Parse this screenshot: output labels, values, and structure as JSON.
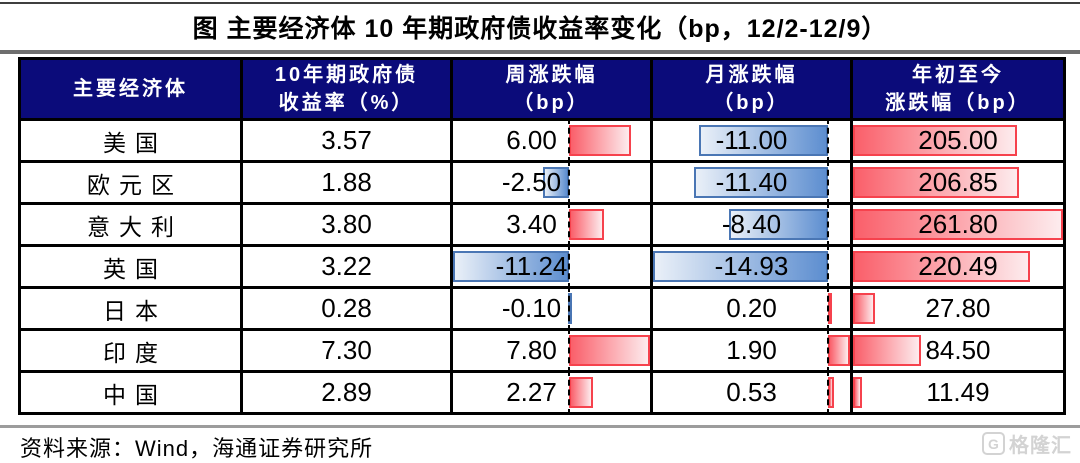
{
  "page": {
    "title": "图  主要经济体 10 年期政府债收益率变化（bp，12/2-12/9）",
    "source_note": "资料来源：Wind，海通证券研究所",
    "watermark": {
      "icon": "G",
      "text": "格隆汇"
    }
  },
  "colors": {
    "header_bg": "#0b0b7a",
    "header_text": "#ffffff",
    "grid": "#000000",
    "pos_border": "#f6424d",
    "pos_fill_base": "#fa5f6a",
    "pos_fill_tip": "#fdecee",
    "neg_border": "#4a76b4",
    "neg_fill_base": "#5d8ed0",
    "neg_fill_tip": "#eaf0f8",
    "axis_dash": "#000000",
    "rule_top": "#3f3f3f",
    "rule_mid": "#6e6e6e",
    "rule_bottom": "#9c9c9c",
    "watermark": "#d3d3d3"
  },
  "table": {
    "headers": [
      {
        "l1": "主要经济体",
        "l2": ""
      },
      {
        "l1": "10年期政府债",
        "l2": "收益率（%）"
      },
      {
        "l1": "周涨跌幅",
        "l2": "（bp）"
      },
      {
        "l1": "月涨跌幅",
        "l2": "（bp）"
      },
      {
        "l1": "年初至今",
        "l2": "涨跌幅（bp）"
      }
    ],
    "rows": [
      {
        "economy": "美国",
        "yield": "3.57",
        "week": "6.00",
        "month": "-11.00",
        "ytd": "205.00"
      },
      {
        "economy": "欧元区",
        "yield": "1.88",
        "week": "-2.50",
        "month": "-11.40",
        "ytd": "206.85"
      },
      {
        "economy": "意大利",
        "yield": "3.80",
        "week": "3.40",
        "month": "-8.40",
        "ytd": "261.80"
      },
      {
        "economy": "英国",
        "yield": "3.22",
        "week": "-11.24",
        "month": "-14.93",
        "ytd": "220.49"
      },
      {
        "economy": "日本",
        "yield": "0.28",
        "week": "-0.10",
        "month": "0.20",
        "ytd": "27.80"
      },
      {
        "economy": "印度",
        "yield": "7.30",
        "week": "7.80",
        "month": "1.90",
        "ytd": "84.50"
      },
      {
        "economy": "中国",
        "yield": "2.89",
        "week": "2.27",
        "month": "0.53",
        "ytd": "11.49"
      }
    ]
  },
  "chart_data": {
    "type": "table",
    "title": "主要经济体 10 年期政府债收益率变化（bp，12/2-12/9）",
    "columns": [
      "主要经济体",
      "10年期政府债收益率（%）",
      "周涨跌幅（bp）",
      "月涨跌幅（bp）",
      "年初至今涨跌幅（bp）"
    ],
    "economies": [
      "美国",
      "欧元区",
      "意大利",
      "英国",
      "日本",
      "印度",
      "中国"
    ],
    "yield_pct": [
      3.57,
      1.88,
      3.8,
      3.22,
      0.28,
      7.3,
      2.89
    ],
    "week_change_bp": [
      6.0,
      -2.5,
      3.4,
      -11.24,
      -0.1,
      7.8,
      2.27
    ],
    "month_change_bp": [
      -11.0,
      -11.4,
      -8.4,
      -14.93,
      0.2,
      1.9,
      0.53
    ],
    "ytd_change_bp": [
      205.0,
      206.85,
      261.8,
      220.49,
      27.8,
      84.5,
      11.49
    ],
    "databar_style": "in-cell data bars: positive values red gradient bars to the right of dashed zero axis, negative values blue gradient bars to the left; YTD column all-positive bars scaled 0..max",
    "source": "资料来源：Wind，海通证券研究所"
  }
}
